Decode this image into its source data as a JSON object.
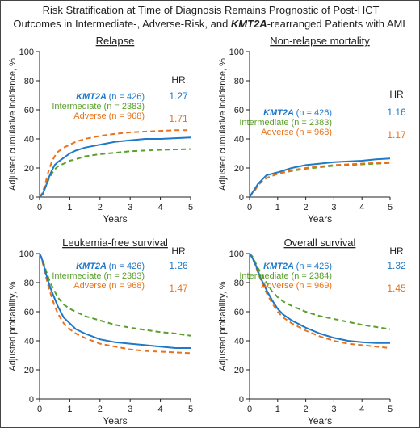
{
  "title": {
    "line1": "Risk Stratification at Time of Diagnosis Remains Prognostic of Post-HCT",
    "line2_pre": "Outcomes in Intermediate-, Adverse-Risk, and ",
    "line2_bold": "KMT2A",
    "line2_post": "-rearranged Patients with AML"
  },
  "colors": {
    "kmt2a": "#1f78c8",
    "intermediate": "#5aa02c",
    "adverse": "#e8731a",
    "axis": "#222222"
  },
  "hr_header": "HR",
  "chart_data": [
    {
      "type": "line",
      "title": "Relapse",
      "xlabel": "Years",
      "ylabel": "Adjusted cumulative incidence, %",
      "xlim": [
        0,
        5
      ],
      "ylim": [
        0,
        100
      ],
      "xticks": [
        "0",
        "1",
        "2",
        "3",
        "4",
        "5"
      ],
      "yticks": [
        "0",
        "20",
        "40",
        "60",
        "80",
        "100"
      ],
      "legend_placement": "upper-right",
      "series": [
        {
          "key": "kmt2a",
          "label": "KMT2A",
          "n": "(n = 426)",
          "hr": "1.27",
          "dash": false,
          "x": [
            0,
            0.1,
            0.2,
            0.3,
            0.4,
            0.5,
            0.6,
            0.8,
            1,
            1.2,
            1.5,
            2,
            2.5,
            3,
            3.5,
            4,
            4.5,
            5
          ],
          "y": [
            0,
            2,
            7,
            13,
            18,
            22,
            24,
            27,
            30,
            32,
            34,
            36,
            38,
            39,
            40,
            40,
            40.5,
            41
          ]
        },
        {
          "key": "intermediate",
          "label": "Intermediate",
          "n": "(n = 2383)",
          "hr": "",
          "dash": true,
          "x": [
            0,
            0.1,
            0.2,
            0.3,
            0.4,
            0.5,
            0.6,
            0.8,
            1,
            1.2,
            1.5,
            2,
            2.5,
            3,
            3.5,
            4,
            4.5,
            5
          ],
          "y": [
            0,
            2,
            7,
            12,
            16,
            19,
            21,
            23,
            25,
            26,
            28,
            29.5,
            30.5,
            31.5,
            32,
            32.5,
            32.8,
            33
          ]
        },
        {
          "key": "adverse",
          "label": "Adverse",
          "n": "(n = 968)",
          "hr": "1.71",
          "dash": true,
          "x": [
            0,
            0.1,
            0.2,
            0.3,
            0.4,
            0.5,
            0.6,
            0.8,
            1,
            1.2,
            1.5,
            2,
            2.5,
            3,
            3.5,
            4,
            4.5,
            5
          ],
          "y": [
            0,
            3,
            10,
            18,
            24,
            28,
            31,
            34,
            36,
            38,
            40,
            42,
            43.5,
            44.5,
            45,
            45.5,
            46,
            46
          ]
        }
      ]
    },
    {
      "type": "line",
      "title": "Non-relapse mortality",
      "xlabel": "Years",
      "ylabel": "Adjusted cumulative incidence, %",
      "xlim": [
        0,
        5
      ],
      "ylim": [
        0,
        100
      ],
      "xticks": [
        "0",
        "1",
        "2",
        "3",
        "4",
        "5"
      ],
      "yticks": [
        "0",
        "20",
        "40",
        "60",
        "80",
        "100"
      ],
      "legend_placement": "center-right",
      "series": [
        {
          "key": "kmt2a",
          "label": "KMT2A",
          "n": "(n = 426)",
          "hr": "1.16",
          "dash": false,
          "x": [
            0,
            0.1,
            0.2,
            0.3,
            0.4,
            0.5,
            0.6,
            0.8,
            1,
            1.5,
            2,
            2.5,
            3,
            3.5,
            4,
            4.5,
            5
          ],
          "y": [
            0,
            3,
            6,
            9,
            11,
            13,
            15,
            16,
            17,
            20,
            22,
            23,
            24,
            24.5,
            25,
            26,
            26.5
          ]
        },
        {
          "key": "intermediate",
          "label": "Intermediate",
          "n": "(n = 2383)",
          "hr": "",
          "dash": true,
          "x": [
            0,
            0.1,
            0.2,
            0.3,
            0.4,
            0.5,
            0.6,
            0.8,
            1,
            1.5,
            2,
            2.5,
            3,
            3.5,
            4,
            4.5,
            5
          ],
          "y": [
            0,
            3,
            5,
            8,
            10,
            12,
            13,
            14.5,
            16,
            18,
            19.5,
            20.5,
            21.5,
            22,
            22.5,
            23,
            23.5
          ]
        },
        {
          "key": "adverse",
          "label": "Adverse",
          "n": "(n = 968)",
          "hr": "1.17",
          "dash": true,
          "x": [
            0,
            0.1,
            0.2,
            0.3,
            0.4,
            0.5,
            0.6,
            0.8,
            1,
            1.5,
            2,
            2.5,
            3,
            3.5,
            4,
            4.5,
            5
          ],
          "y": [
            0,
            3,
            5,
            8,
            10,
            12,
            13,
            14.5,
            16,
            18.5,
            20,
            21,
            22,
            22.5,
            23,
            23.5,
            24
          ]
        }
      ]
    },
    {
      "type": "line",
      "title": "Leukemia-free survival",
      "xlabel": "Years",
      "ylabel": "Adjusted probability, %",
      "xlim": [
        0,
        5
      ],
      "ylim": [
        0,
        100
      ],
      "xticks": [
        "0",
        "1",
        "2",
        "3",
        "4",
        "5"
      ],
      "yticks": [
        "0",
        "20",
        "40",
        "60",
        "80",
        "100"
      ],
      "legend_placement": "upper-right",
      "series": [
        {
          "key": "kmt2a",
          "label": "KMT2A",
          "n": "(n = 426)",
          "hr": "1.26",
          "dash": false,
          "x": [
            0,
            0.1,
            0.2,
            0.3,
            0.4,
            0.5,
            0.6,
            0.8,
            1,
            1.2,
            1.5,
            2,
            2.5,
            3,
            3.5,
            4,
            4.5,
            5
          ],
          "y": [
            100,
            95,
            87,
            80,
            74,
            69,
            64,
            56,
            52,
            48,
            45,
            41,
            39,
            38,
            37,
            36,
            35,
            35
          ]
        },
        {
          "key": "intermediate",
          "label": "Intermediate",
          "n": "(n = 2383)",
          "hr": "",
          "dash": true,
          "x": [
            0,
            0.1,
            0.2,
            0.3,
            0.4,
            0.5,
            0.6,
            0.8,
            1,
            1.2,
            1.5,
            2,
            2.5,
            3,
            3.5,
            4,
            4.5,
            5
          ],
          "y": [
            100,
            96,
            89,
            83,
            78,
            74,
            70,
            65,
            62,
            60,
            57,
            54,
            51,
            49,
            47.5,
            46,
            45,
            43.5
          ]
        },
        {
          "key": "adverse",
          "label": "Adverse",
          "n": "(n = 968)",
          "hr": "1.47",
          "dash": true,
          "x": [
            0,
            0.1,
            0.2,
            0.3,
            0.4,
            0.5,
            0.6,
            0.8,
            1,
            1.2,
            1.5,
            2,
            2.5,
            3,
            3.5,
            4,
            4.5,
            5
          ],
          "y": [
            100,
            94,
            85,
            77,
            70,
            64,
            59,
            52,
            48,
            45,
            42,
            38,
            36,
            34,
            33,
            32.5,
            32,
            31.5
          ]
        }
      ]
    },
    {
      "type": "line",
      "title": "Overall survival",
      "xlabel": "Years",
      "ylabel": "Adjusted probability, %",
      "xlim": [
        0,
        5
      ],
      "ylim": [
        0,
        100
      ],
      "xticks": [
        "0",
        "1",
        "2",
        "3",
        "4",
        "5"
      ],
      "yticks": [
        "0",
        "20",
        "40",
        "60",
        "80",
        "100"
      ],
      "legend_placement": "upper-right",
      "series": [
        {
          "key": "kmt2a",
          "label": "KMT2A",
          "n": "(n = 426)",
          "hr": "1.32",
          "dash": false,
          "x": [
            0,
            0.1,
            0.2,
            0.3,
            0.4,
            0.5,
            0.6,
            0.8,
            1,
            1.2,
            1.5,
            2,
            2.5,
            3,
            3.5,
            4,
            4.5,
            5
          ],
          "y": [
            100,
            97,
            93,
            88,
            83,
            79,
            75,
            68,
            62,
            58,
            54,
            49,
            45,
            42,
            40,
            39,
            38.5,
            38.5
          ]
        },
        {
          "key": "intermediate",
          "label": "Intermediate",
          "n": "(n = 2384)",
          "hr": "",
          "dash": true,
          "x": [
            0,
            0.1,
            0.2,
            0.3,
            0.4,
            0.5,
            0.6,
            0.8,
            1,
            1.2,
            1.5,
            2,
            2.5,
            3,
            3.5,
            4,
            4.5,
            5
          ],
          "y": [
            100,
            98,
            94,
            90,
            87,
            83,
            80,
            74,
            70,
            67,
            64,
            60,
            57,
            55,
            53,
            51,
            49.5,
            48
          ]
        },
        {
          "key": "adverse",
          "label": "Adverse",
          "n": "(n = 969)",
          "hr": "1.45",
          "dash": true,
          "x": [
            0,
            0.1,
            0.2,
            0.3,
            0.4,
            0.5,
            0.6,
            0.8,
            1,
            1.2,
            1.5,
            2,
            2.5,
            3,
            3.5,
            4,
            4.5,
            5
          ],
          "y": [
            100,
            97,
            92,
            87,
            82,
            77,
            73,
            66,
            60,
            56,
            52,
            47,
            43,
            40,
            38,
            37,
            36,
            35
          ]
        }
      ]
    }
  ]
}
